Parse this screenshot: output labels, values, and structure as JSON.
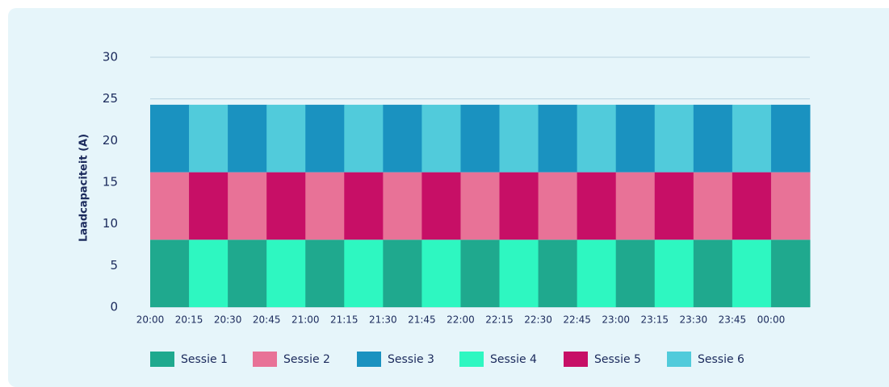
{
  "chart_data": {
    "type": "stacked-bar",
    "y_label": "Laadcapaciteit (A)",
    "categories": [
      "20:00",
      "20:15",
      "20:30",
      "20:45",
      "21:00",
      "21:15",
      "21:30",
      "21:45",
      "22:00",
      "22:15",
      "22:30",
      "22:45",
      "23:00",
      "23:15",
      "23:30",
      "23:45",
      "00:00"
    ],
    "series": [
      {
        "name": "Sessie 1",
        "color": "#1fa98e",
        "values": [
          8.1,
          null,
          8.1,
          null,
          8.1,
          null,
          8.1,
          null,
          8.1,
          null,
          8.1,
          null,
          8.1,
          null,
          8.1,
          null,
          8.1
        ]
      },
      {
        "name": "Sessie 2",
        "color": "#e87297",
        "values": [
          8.1,
          null,
          8.1,
          null,
          8.1,
          null,
          8.1,
          null,
          8.1,
          null,
          8.1,
          null,
          8.1,
          null,
          8.1,
          null,
          8.1
        ]
      },
      {
        "name": "Sessie 3",
        "color": "#1a92c0",
        "values": [
          8.1,
          null,
          8.1,
          null,
          8.1,
          null,
          8.1,
          null,
          8.1,
          null,
          8.1,
          null,
          8.1,
          null,
          8.1,
          null,
          8.1
        ]
      },
      {
        "name": "Sessie 4",
        "color": "#2ef7c1",
        "values": [
          null,
          8.1,
          null,
          8.1,
          null,
          8.1,
          null,
          8.1,
          null,
          8.1,
          null,
          8.1,
          null,
          8.1,
          null,
          8.1,
          null
        ]
      },
      {
        "name": "Sessie 5",
        "color": "#c70f66",
        "values": [
          null,
          8.1,
          null,
          8.1,
          null,
          8.1,
          null,
          8.1,
          null,
          8.1,
          null,
          8.1,
          null,
          8.1,
          null,
          8.1,
          null
        ]
      },
      {
        "name": "Sessie 6",
        "color": "#51cbdb",
        "values": [
          null,
          8.1,
          null,
          8.1,
          null,
          8.1,
          null,
          8.1,
          null,
          8.1,
          null,
          8.1,
          null,
          8.1,
          null,
          8.1,
          null
        ]
      }
    ],
    "ylim": [
      0,
      30
    ],
    "yticks": [
      0,
      5,
      10,
      15,
      20,
      25,
      30
    ],
    "grid": true
  }
}
